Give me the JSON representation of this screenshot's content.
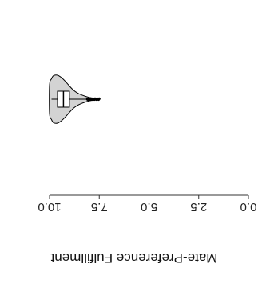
{
  "chart_data": {
    "type": "violin",
    "orientation": "horizontal",
    "rendered_rotation": "180deg",
    "xlabel": "Mate-Preference Fulfillment",
    "xlim": [
      0,
      10
    ],
    "x_ticks": [
      0.0,
      2.5,
      5.0,
      7.5,
      10.0
    ],
    "x_tick_labels": [
      "0.0",
      "2.5",
      "5.0",
      "7.5",
      "10.0"
    ],
    "grid": false,
    "legend": "none",
    "series": [
      {
        "values_summary": {
          "min": 7.5,
          "q1": 9.0,
          "median": 9.3,
          "q3": 9.6,
          "max": 9.9,
          "outliers_range": [
            7.5,
            8.1
          ]
        },
        "density_profile": [
          {
            "x": 7.5,
            "density": 0.0
          },
          {
            "x": 7.8,
            "density": 0.04
          },
          {
            "x": 8.0,
            "density": 0.07
          },
          {
            "x": 8.2,
            "density": 0.12
          },
          {
            "x": 8.4,
            "density": 0.18
          },
          {
            "x": 8.6,
            "density": 0.26
          },
          {
            "x": 8.8,
            "density": 0.38
          },
          {
            "x": 9.0,
            "density": 0.55
          },
          {
            "x": 9.2,
            "density": 0.74
          },
          {
            "x": 9.4,
            "density": 0.9
          },
          {
            "x": 9.6,
            "density": 1.0
          },
          {
            "x": 9.8,
            "density": 0.98
          },
          {
            "x": 9.9,
            "density": 0.85
          },
          {
            "x": 10.0,
            "density": 0.6
          }
        ]
      }
    ],
    "colors": {
      "violin_fill": "#d3d3d3",
      "violin_stroke": "#000000",
      "box_fill": "#ffffff",
      "stroke": "#000000"
    }
  }
}
